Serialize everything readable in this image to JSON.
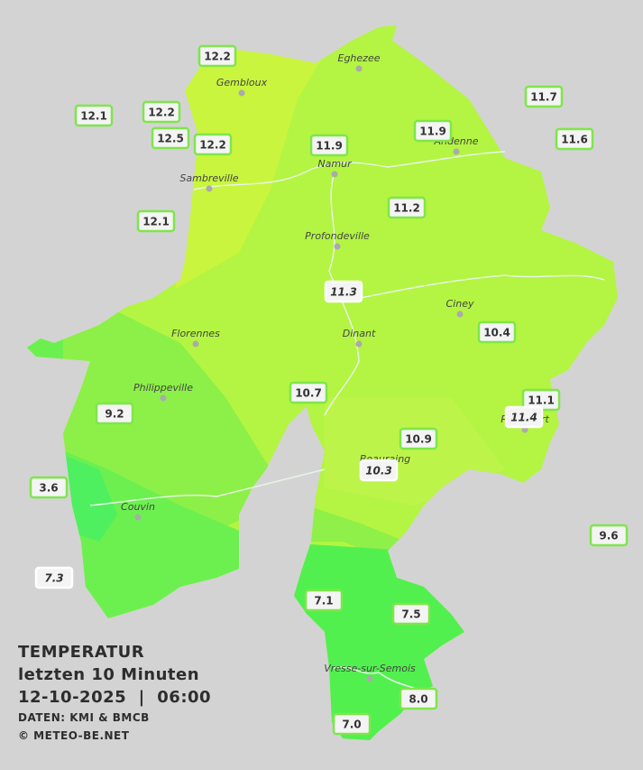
{
  "header": {
    "title": "TEMPERATUR",
    "subtitle": "letzten 10 Minuten",
    "datetime": "12-10-2025  |  06:00",
    "source": "DATEN: KMI & BMCB",
    "credit": "© METEO-BE.NET"
  },
  "towns": [
    "Gembloux",
    "Eghezee",
    "Sambreville",
    "Namur",
    "Andenne",
    "Profondeville",
    "Ciney",
    "Florennes",
    "Dinant",
    "Philippeville",
    "Rochefort",
    "Beauraing",
    "Couvin",
    "Vresse-sur-Semois"
  ],
  "stations": [
    "12.2",
    "12.1",
    "12.2",
    "12.5",
    "12.2",
    "11.9",
    "11.9",
    "11.7",
    "11.6",
    "12.1",
    "11.2",
    "11.3",
    "10.4",
    "10.7",
    "9.2",
    "11.1",
    "11.4",
    "10.9",
    "10.3",
    "3.6",
    "9.6",
    "7.3",
    "7.1",
    "7.5",
    "8.0",
    "7.0"
  ]
}
